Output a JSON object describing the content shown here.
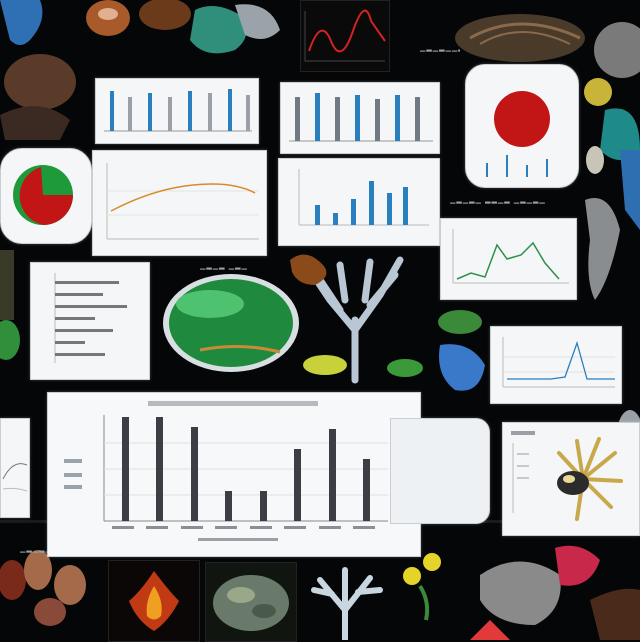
{
  "scene": "collage of dark specimen photos and light chart thumbnails",
  "palette": {
    "background": "#050607",
    "panel": "#f4f6f7",
    "bar_blue": "#2a7fbf",
    "bar_dark": "#3b3f45",
    "pie_red": "#c21616",
    "pie_green": "#1f9a3a",
    "line_red": "#d22222",
    "line_green": "#2f8f4f",
    "line_orange": "#d98a2b"
  },
  "icons": [
    "specimen-blob",
    "fungus-cap",
    "coral-branch",
    "beetle",
    "leaf",
    "tentacle-creature"
  ]
}
